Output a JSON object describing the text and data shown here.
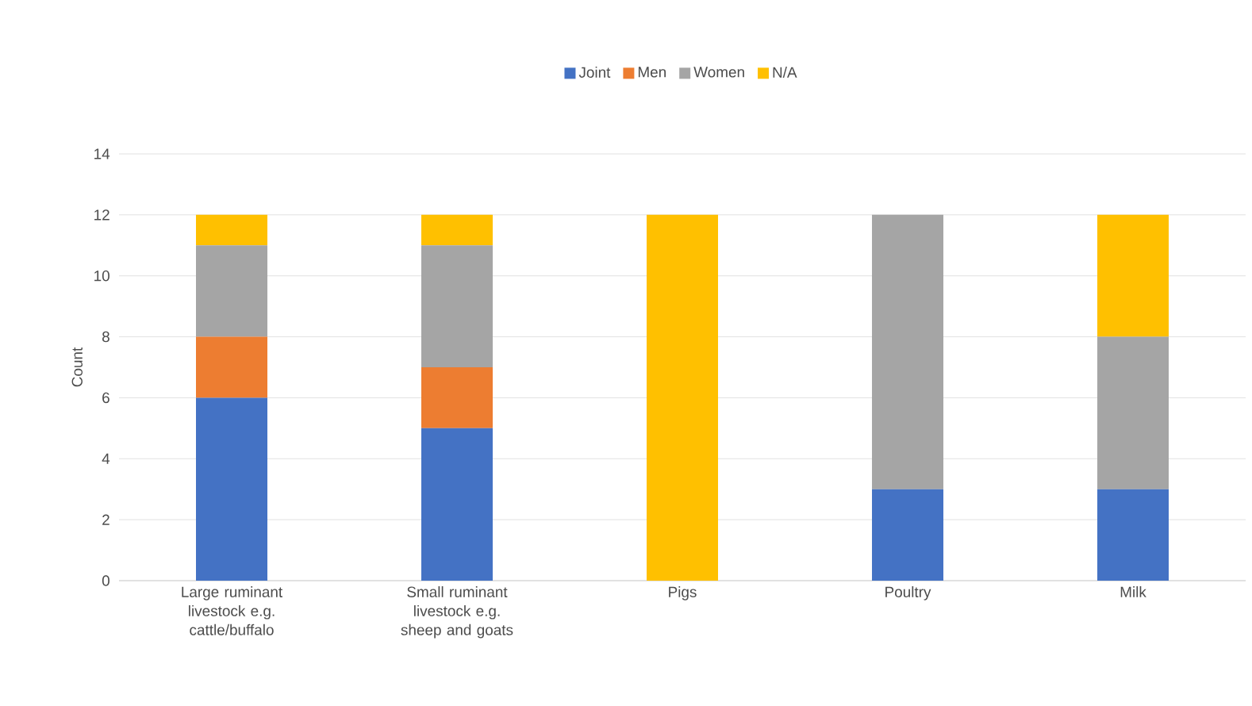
{
  "chart_data": {
    "type": "bar",
    "stacked": true,
    "ylabel": "Count",
    "categories": [
      "Large ruminant livestock e.g. cattle/buffalo",
      "Small ruminant livestock e.g. sheep and goats",
      "Pigs",
      "Poultry",
      "Milk"
    ],
    "series": [
      {
        "name": "Joint",
        "color": "#4472c4",
        "values": [
          6,
          5,
          0,
          3,
          3
        ]
      },
      {
        "name": "Men",
        "color": "#ed7d31",
        "values": [
          2,
          2,
          0,
          0,
          0
        ]
      },
      {
        "name": "Women",
        "color": "#a5a5a5",
        "values": [
          3,
          4,
          0,
          9,
          5
        ]
      },
      {
        "name": "N/A",
        "color": "#ffc000",
        "values": [
          1,
          1,
          12,
          0,
          4
        ]
      }
    ],
    "ylim": [
      0,
      14
    ],
    "yticks": [
      0,
      2,
      4,
      6,
      8,
      10,
      12,
      14
    ],
    "grid": "y",
    "legend": "top"
  }
}
